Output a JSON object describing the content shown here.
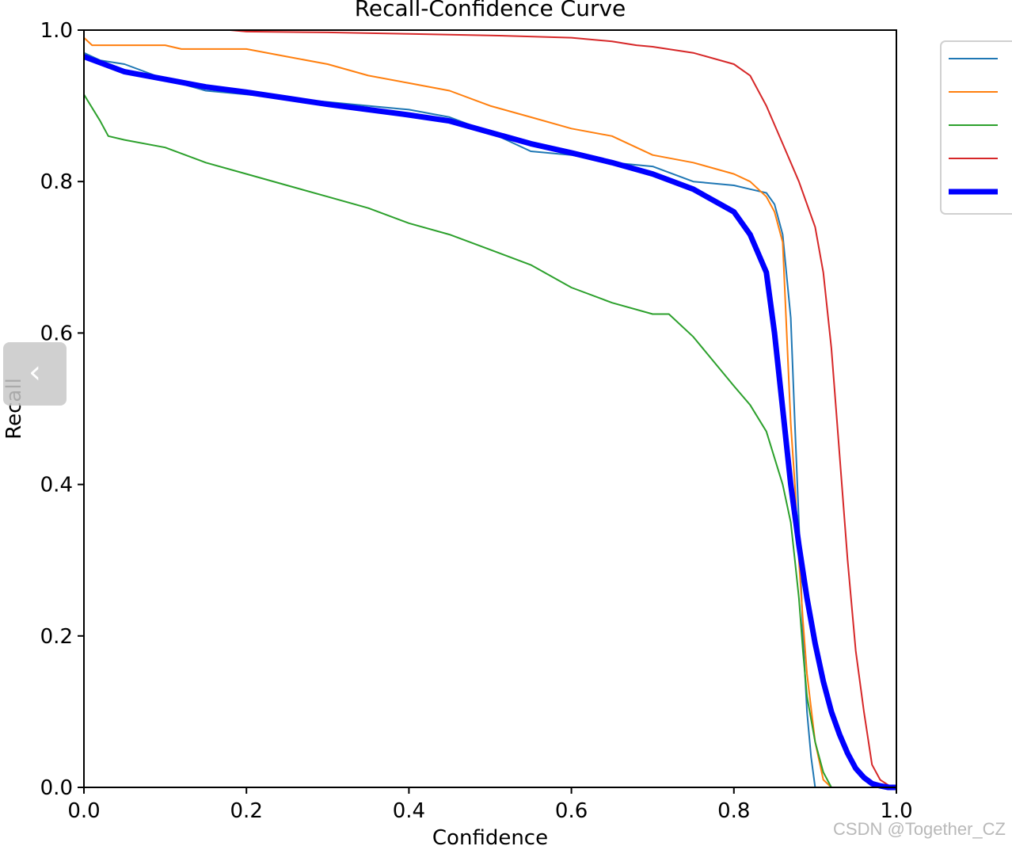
{
  "chart_data": {
    "type": "line",
    "title": "Recall-Confidence Curve",
    "xlabel": "Confidence",
    "ylabel": "Recall",
    "xlim": [
      0.0,
      1.0
    ],
    "ylim": [
      0.0,
      1.0
    ],
    "xticks": [
      "0.0",
      "0.2",
      "0.4",
      "0.6",
      "0.8",
      "1.0"
    ],
    "yticks": [
      "0.0",
      "0.2",
      "0.4",
      "0.6",
      "0.8",
      "1.0"
    ],
    "grid": false,
    "legend_position": "outside-right",
    "series": [
      {
        "color": "#1f77b4",
        "width": "thin",
        "x": [
          0.0,
          0.02,
          0.05,
          0.1,
          0.15,
          0.2,
          0.25,
          0.3,
          0.35,
          0.4,
          0.45,
          0.5,
          0.55,
          0.6,
          0.65,
          0.7,
          0.75,
          0.8,
          0.82,
          0.84,
          0.85,
          0.86,
          0.87,
          0.875,
          0.88,
          0.885,
          0.89,
          0.895,
          0.9,
          0.905,
          1.0
        ],
        "y": [
          0.97,
          0.96,
          0.955,
          0.935,
          0.92,
          0.915,
          0.91,
          0.905,
          0.9,
          0.895,
          0.885,
          0.865,
          0.84,
          0.835,
          0.825,
          0.82,
          0.8,
          0.795,
          0.79,
          0.785,
          0.77,
          0.73,
          0.62,
          0.48,
          0.35,
          0.2,
          0.1,
          0.04,
          0.0,
          0.0,
          0.0
        ]
      },
      {
        "color": "#ff7f0e",
        "width": "thin",
        "x": [
          0.0,
          0.01,
          0.05,
          0.1,
          0.12,
          0.2,
          0.25,
          0.3,
          0.35,
          0.4,
          0.45,
          0.5,
          0.55,
          0.6,
          0.65,
          0.7,
          0.75,
          0.8,
          0.82,
          0.84,
          0.85,
          0.86,
          0.865,
          0.87,
          0.875,
          0.88,
          0.885,
          0.89,
          0.9,
          0.91,
          0.92,
          1.0
        ],
        "y": [
          0.99,
          0.98,
          0.98,
          0.98,
          0.975,
          0.975,
          0.965,
          0.955,
          0.94,
          0.93,
          0.92,
          0.9,
          0.885,
          0.87,
          0.86,
          0.835,
          0.825,
          0.81,
          0.8,
          0.78,
          0.76,
          0.72,
          0.6,
          0.48,
          0.4,
          0.3,
          0.22,
          0.15,
          0.06,
          0.01,
          0.0,
          0.0
        ]
      },
      {
        "color": "#2ca02c",
        "width": "thin",
        "x": [
          0.0,
          0.02,
          0.03,
          0.05,
          0.1,
          0.15,
          0.2,
          0.25,
          0.3,
          0.35,
          0.4,
          0.45,
          0.5,
          0.55,
          0.6,
          0.65,
          0.7,
          0.72,
          0.75,
          0.8,
          0.82,
          0.84,
          0.86,
          0.87,
          0.875,
          0.88,
          0.885,
          0.89,
          0.9,
          0.91,
          0.92,
          1.0
        ],
        "y": [
          0.915,
          0.88,
          0.86,
          0.855,
          0.845,
          0.825,
          0.81,
          0.795,
          0.78,
          0.765,
          0.745,
          0.73,
          0.71,
          0.69,
          0.66,
          0.64,
          0.625,
          0.625,
          0.595,
          0.53,
          0.505,
          0.47,
          0.4,
          0.35,
          0.3,
          0.25,
          0.18,
          0.12,
          0.06,
          0.02,
          0.0,
          0.0
        ]
      },
      {
        "color": "#d62728",
        "width": "thin",
        "x": [
          0.0,
          0.18,
          0.2,
          0.3,
          0.4,
          0.5,
          0.6,
          0.65,
          0.68,
          0.7,
          0.75,
          0.8,
          0.82,
          0.84,
          0.86,
          0.88,
          0.9,
          0.91,
          0.92,
          0.93,
          0.94,
          0.95,
          0.96,
          0.97,
          0.98,
          0.99,
          1.0
        ],
        "y": [
          1.0,
          1.0,
          0.998,
          0.997,
          0.995,
          0.993,
          0.99,
          0.985,
          0.98,
          0.978,
          0.97,
          0.955,
          0.94,
          0.9,
          0.85,
          0.8,
          0.74,
          0.68,
          0.58,
          0.44,
          0.3,
          0.18,
          0.1,
          0.03,
          0.01,
          0.003,
          0.0
        ]
      },
      {
        "color": "#0000ff",
        "width": "thick",
        "x": [
          0.0,
          0.05,
          0.1,
          0.15,
          0.2,
          0.25,
          0.3,
          0.35,
          0.4,
          0.45,
          0.5,
          0.55,
          0.6,
          0.65,
          0.7,
          0.75,
          0.8,
          0.82,
          0.84,
          0.85,
          0.86,
          0.87,
          0.88,
          0.89,
          0.9,
          0.91,
          0.92,
          0.93,
          0.94,
          0.95,
          0.96,
          0.97,
          0.98,
          0.99,
          1.0
        ],
        "y": [
          0.965,
          0.945,
          0.935,
          0.925,
          0.918,
          0.91,
          0.902,
          0.895,
          0.888,
          0.88,
          0.865,
          0.85,
          0.838,
          0.825,
          0.81,
          0.79,
          0.76,
          0.73,
          0.68,
          0.6,
          0.5,
          0.4,
          0.32,
          0.25,
          0.19,
          0.14,
          0.1,
          0.07,
          0.045,
          0.025,
          0.013,
          0.005,
          0.002,
          0.0,
          0.0
        ]
      }
    ]
  },
  "watermark": "CSDN @Together_CZ",
  "nav_toggle_glyph": "‹",
  "nav_toggle_icon": "chevron-left-icon"
}
